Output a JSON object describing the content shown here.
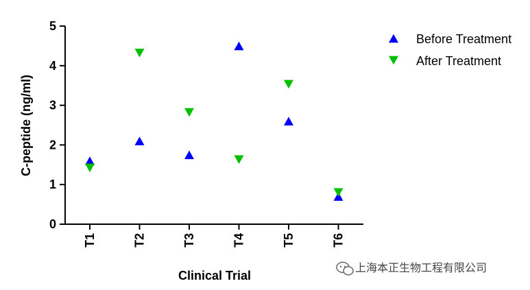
{
  "chart_data": {
    "type": "scatter",
    "categories": [
      "T1",
      "T2",
      "T3",
      "T4",
      "T5",
      "T6"
    ],
    "series": [
      {
        "name": "Before Treatment",
        "marker": "triangle-up",
        "color": "#0000ff",
        "values": [
          1.6,
          2.1,
          1.75,
          4.5,
          2.6,
          0.7
        ]
      },
      {
        "name": "After Treatment",
        "marker": "triangle-down",
        "color": "#00c000",
        "values": [
          1.42,
          4.32,
          2.82,
          1.63,
          3.53,
          0.8
        ]
      }
    ],
    "title": "",
    "xlabel": "Clinical Trial",
    "ylabel": "C-peptide (ng/ml)",
    "ylim": [
      0,
      5
    ],
    "yticks": [
      0,
      1,
      2,
      3,
      4,
      5
    ],
    "grid": false,
    "legend_position": "top-right"
  },
  "watermark": {
    "text": "上海本正生物工程有限公司",
    "icon": "wechat-icon"
  }
}
